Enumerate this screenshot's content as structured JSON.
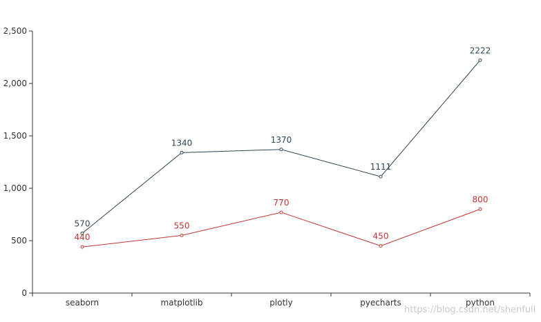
{
  "chart_data": {
    "type": "line",
    "categories": [
      "seaborn",
      "matplotlib",
      "plotly",
      "pyecharts",
      "python"
    ],
    "series": [
      {
        "values": [
          570,
          1340,
          1370,
          1111,
          2222
        ],
        "color": "#2f4554"
      },
      {
        "values": [
          440,
          550,
          770,
          450,
          800
        ],
        "color": "#c23531"
      }
    ],
    "ylim": [
      0,
      2500
    ],
    "yticks": [
      0,
      500,
      1000,
      1500,
      2000,
      2500
    ],
    "ytick_labels": [
      "0",
      "500",
      "1,000",
      "1,500",
      "2,000",
      "2,500"
    ],
    "xlabel": "",
    "ylabel": "",
    "grid": false,
    "legend": false
  },
  "watermark": "https://blog.csdn.net/shenfuli"
}
